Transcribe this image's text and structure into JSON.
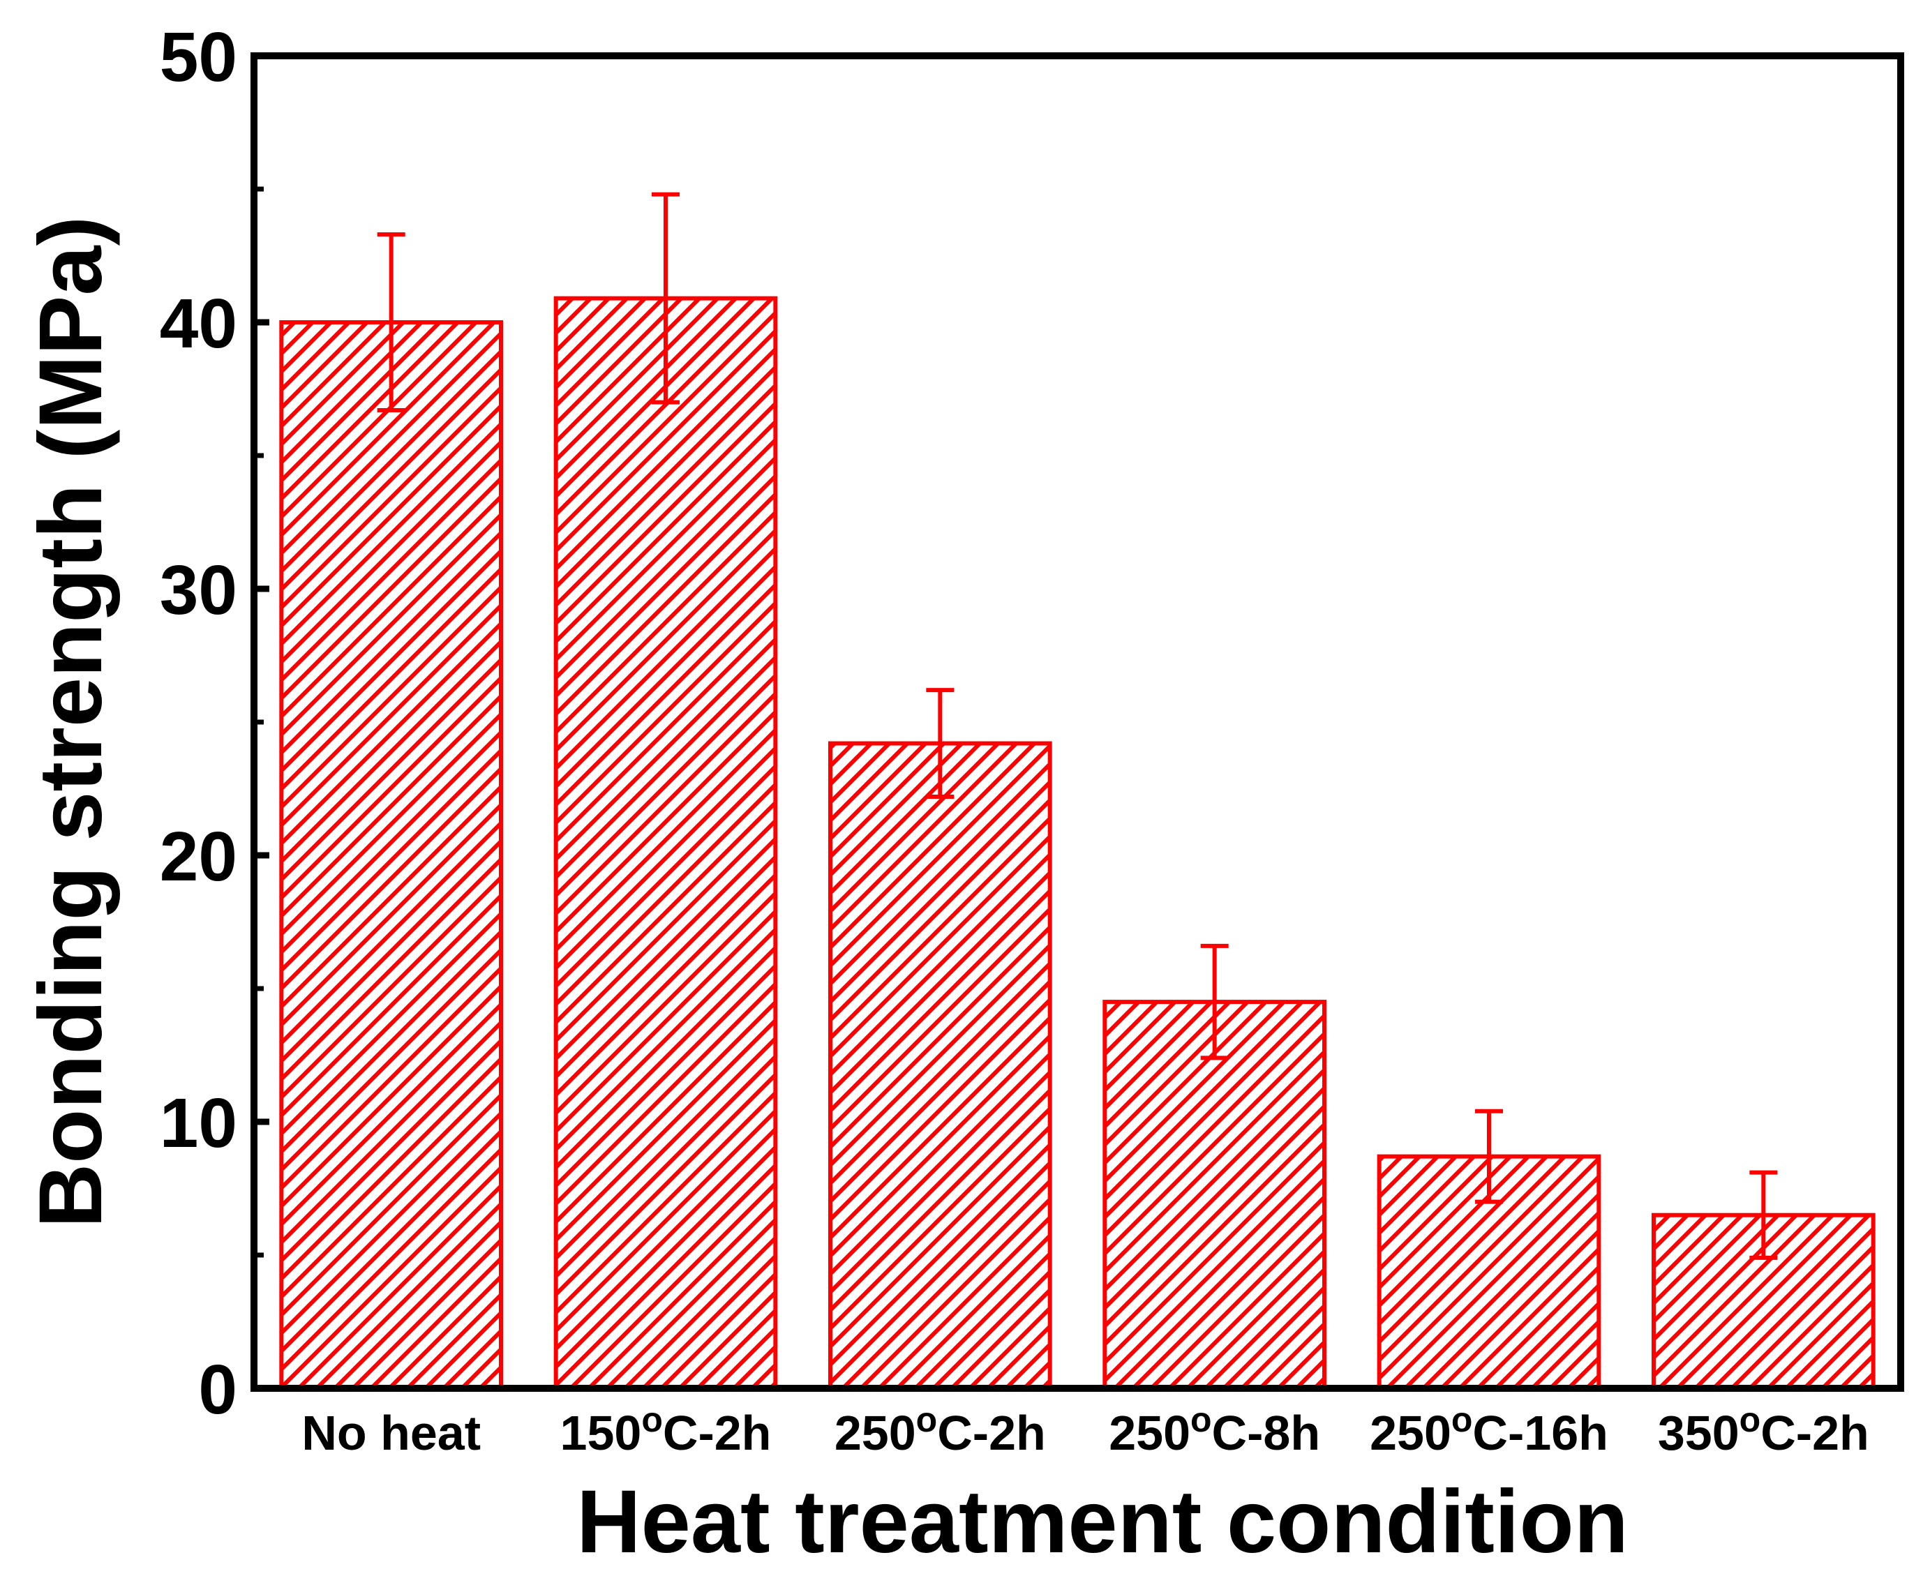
{
  "chart_data": {
    "type": "bar",
    "title": "",
    "xlabel": "Heat treatment condition",
    "ylabel": "Bonding strength (MPa)",
    "ylim": [
      0,
      50
    ],
    "yticks": [
      0,
      10,
      20,
      30,
      40,
      50
    ],
    "y_minor_ticks": [
      5,
      15,
      25,
      35,
      45
    ],
    "categories": [
      {
        "pre": "No heat",
        "sup": "",
        "post": ""
      },
      {
        "pre": "150",
        "sup": "o",
        "post": "C-2h"
      },
      {
        "pre": "250",
        "sup": "o",
        "post": "C-2h"
      },
      {
        "pre": "250",
        "sup": "o",
        "post": "C-8h"
      },
      {
        "pre": "250",
        "sup": "o",
        "post": "C-16h"
      },
      {
        "pre": "350",
        "sup": "o",
        "post": "C-2h"
      }
    ],
    "values": [
      40.0,
      40.9,
      24.2,
      14.5,
      8.7,
      6.5
    ],
    "errors": [
      3.3,
      3.9,
      2.0,
      2.1,
      1.7,
      1.6
    ],
    "grid": false,
    "bar_style": "red outline with diagonal hatch",
    "colors": {
      "bar": "#ff0000",
      "error_bar": "#ff0000",
      "axis": "#000000"
    }
  }
}
